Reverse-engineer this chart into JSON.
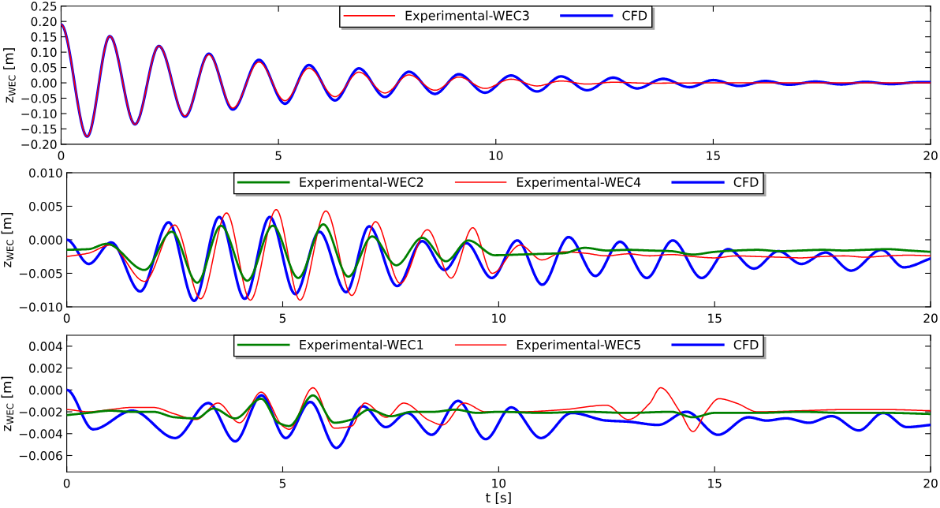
{
  "chart_data": [
    {
      "type": "line",
      "ylabel": "z$_{WEC}$ [m]",
      "xlim": [
        0,
        20
      ],
      "xticks": [
        0,
        5,
        10,
        15,
        20
      ],
      "ylim": [
        -0.2,
        0.25
      ],
      "yticks": [
        {
          "value": -0.2,
          "label": "−0.20"
        },
        {
          "value": -0.15,
          "label": "−0.15"
        },
        {
          "value": -0.1,
          "label": "−0.10"
        },
        {
          "value": -0.05,
          "label": "−0.05"
        },
        {
          "value": 0,
          "label": "0.00"
        },
        {
          "value": 0.05,
          "label": "0.05"
        },
        {
          "value": 0.1,
          "label": "0.10"
        },
        {
          "value": 0.15,
          "label": "0.15"
        },
        {
          "value": 0.2,
          "label": "0.20"
        },
        {
          "value": 0.25,
          "label": "0.25"
        }
      ],
      "grid": false,
      "legend": "top",
      "series": [
        {
          "name": "Experimental-WEC3",
          "color": "#ff0000",
          "x": [
            0,
            0.6,
            1.12,
            1.7,
            2.25,
            2.85,
            3.4,
            3.95,
            4.55,
            5.15,
            5.7,
            6.3,
            6.85,
            7.45,
            8.0,
            8.6,
            9.15,
            9.75,
            10.35,
            10.95,
            11.5,
            12.1,
            12.7,
            13.5,
            15,
            17,
            20
          ],
          "values": [
            0.19,
            -0.175,
            0.152,
            -0.135,
            0.12,
            -0.108,
            0.092,
            -0.082,
            0.068,
            -0.058,
            0.048,
            -0.045,
            0.035,
            -0.033,
            0.026,
            -0.024,
            0.019,
            -0.018,
            0.012,
            -0.01,
            0.006,
            -0.004,
            0.002,
            -0.001,
            0,
            0,
            0
          ]
        },
        {
          "name": "CFD",
          "color": "#0000ff",
          "x": [
            0,
            0.6,
            1.12,
            1.7,
            2.25,
            2.85,
            3.4,
            3.95,
            4.55,
            5.15,
            5.7,
            6.3,
            6.85,
            7.45,
            8.0,
            8.6,
            9.15,
            9.75,
            10.35,
            10.95,
            11.5,
            12.1,
            12.7,
            13.25,
            13.85,
            14.45,
            15.0,
            15.6,
            16.2,
            16.75,
            17.35,
            17.95,
            18.5,
            19.1,
            19.7,
            20
          ],
          "values": [
            0.19,
            -0.175,
            0.152,
            -0.135,
            0.12,
            -0.11,
            0.095,
            -0.087,
            0.075,
            -0.068,
            0.058,
            -0.057,
            0.047,
            -0.046,
            0.036,
            -0.036,
            0.028,
            -0.032,
            0.024,
            -0.028,
            0.021,
            -0.024,
            0.017,
            -0.018,
            0.013,
            -0.014,
            0.009,
            -0.01,
            0.006,
            -0.006,
            0.004,
            -0.005,
            0.003,
            -0.004,
            0.002,
            0.002
          ]
        }
      ]
    },
    {
      "type": "line",
      "ylabel": "z$_{WEC}$ [m]",
      "xlim": [
        0,
        20
      ],
      "xticks": [
        0,
        5,
        10,
        15,
        20
      ],
      "ylim": [
        -0.01,
        0.01
      ],
      "yticks": [
        {
          "value": -0.01,
          "label": "−0.010"
        },
        {
          "value": -0.005,
          "label": "−0.005"
        },
        {
          "value": 0,
          "label": "0.000"
        },
        {
          "value": 0.005,
          "label": "0.005"
        },
        {
          "value": 0.01,
          "label": "0.010"
        }
      ],
      "grid": false,
      "legend": "top",
      "series": [
        {
          "name": "Experimental-WEC2",
          "color": "#008000",
          "x": [
            0,
            0.5,
            0.93,
            1.8,
            2.43,
            3.02,
            3.57,
            4.18,
            4.77,
            5.36,
            5.94,
            6.52,
            7.07,
            7.63,
            8.23,
            8.78,
            9.3,
            9.91,
            10.5,
            11.0,
            11.5,
            12.0,
            12.5,
            13.0,
            13.5,
            14.0,
            14.5,
            15.0,
            15.5,
            16.0,
            16.5,
            17.0,
            17.5,
            18.0,
            18.5,
            19.0,
            19.5,
            20
          ],
          "values": [
            -0.0015,
            -0.0014,
            -0.0006,
            -0.0045,
            0.0012,
            -0.0064,
            0.0021,
            -0.0061,
            0.0021,
            -0.0057,
            0.0023,
            -0.0055,
            0.0005,
            -0.0038,
            0.0003,
            -0.0032,
            -0.0001,
            -0.0023,
            -0.0022,
            -0.0021,
            -0.002,
            -0.0012,
            -0.0016,
            -0.0015,
            -0.0016,
            -0.0017,
            -0.0022,
            -0.0018,
            -0.0016,
            -0.0015,
            -0.0017,
            -0.0016,
            -0.0015,
            -0.0016,
            -0.0015,
            -0.0014,
            -0.0016,
            -0.0018
          ]
        },
        {
          "name": "Experimental-WEC4",
          "color": "#ff0000",
          "x": [
            0,
            0.5,
            1.0,
            1.8,
            2.5,
            3.1,
            3.7,
            4.25,
            4.85,
            5.4,
            6.0,
            6.6,
            7.15,
            7.72,
            8.35,
            8.9,
            9.4,
            9.85,
            10.5,
            11.0,
            11.5,
            12.0,
            12.5,
            13.0,
            13.5,
            14.0,
            14.5,
            15.0,
            15.5,
            16.0,
            16.5,
            17.0,
            17.5,
            18.0,
            18.5,
            19.0,
            19.5,
            20
          ],
          "values": [
            -0.0025,
            -0.002,
            -0.0008,
            -0.0062,
            0.0022,
            -0.0088,
            0.004,
            -0.009,
            0.0045,
            -0.009,
            0.0043,
            -0.0083,
            0.0027,
            -0.0065,
            0.0015,
            -0.0057,
            0.0018,
            -0.005,
            -0.0008,
            -0.003,
            -0.0018,
            -0.002,
            -0.0024,
            -0.0021,
            -0.0024,
            -0.0022,
            -0.0025,
            -0.0027,
            -0.0024,
            -0.0025,
            -0.0026,
            -0.0027,
            -0.0025,
            -0.0024,
            -0.0026,
            -0.0024,
            -0.0023,
            -0.0024
          ]
        },
        {
          "name": "CFD",
          "color": "#0000ff",
          "x": [
            0,
            0.51,
            1.03,
            1.7,
            2.36,
            2.95,
            3.53,
            4.12,
            4.7,
            5.29,
            5.85,
            6.47,
            7.0,
            7.65,
            8.23,
            8.75,
            9.25,
            9.84,
            10.43,
            11.01,
            11.62,
            12.24,
            12.81,
            13.43,
            14.03,
            14.7,
            15.31,
            15.91,
            16.48,
            17.01,
            17.57,
            18.16,
            18.86,
            19.38,
            20
          ],
          "values": [
            0.0,
            -0.0036,
            -0.0004,
            -0.0077,
            0.0026,
            -0.0091,
            0.0034,
            -0.0088,
            0.0034,
            -0.0081,
            0.0012,
            -0.0078,
            0.002,
            -0.0069,
            -0.0002,
            -0.0045,
            -0.0005,
            -0.0057,
            -0.0001,
            -0.0067,
            0.0004,
            -0.0054,
            -0.0003,
            -0.0057,
            -0.0001,
            -0.0057,
            -0.0014,
            -0.0043,
            -0.0017,
            -0.0036,
            -0.0019,
            -0.0046,
            -0.0015,
            -0.0041,
            -0.0028
          ]
        }
      ]
    },
    {
      "type": "line",
      "ylabel": "z$_{WEC}$ [m]",
      "xlabel": "t [s]",
      "xlim": [
        0,
        20
      ],
      "xticks": [
        0,
        5,
        10,
        15,
        20
      ],
      "ylim": [
        -0.0075,
        0.005
      ],
      "yticks": [
        {
          "value": -0.006,
          "label": "−0.006"
        },
        {
          "value": -0.004,
          "label": "−0.004"
        },
        {
          "value": -0.002,
          "label": "−0.002"
        },
        {
          "value": 0,
          "label": "0.000"
        },
        {
          "value": 0.002,
          "label": "0.002"
        },
        {
          "value": 0.004,
          "label": "0.004"
        }
      ],
      "grid": false,
      "legend": "top",
      "series": [
        {
          "name": "Experimental-WEC1",
          "color": "#008000",
          "x": [
            0,
            0.5,
            1,
            1.5,
            2,
            2.5,
            3.0,
            3.4,
            3.9,
            4.5,
            4.9,
            5.15,
            5.7,
            6.2,
            6.6,
            7.0,
            7.5,
            8.0,
            8.5,
            9.0,
            9.5,
            10,
            11,
            12,
            13,
            14,
            14.5,
            15,
            16,
            17,
            18,
            19,
            20
          ],
          "values": [
            -0.0023,
            -0.0021,
            -0.0019,
            -0.002,
            -0.002,
            -0.0025,
            -0.0026,
            -0.0017,
            -0.0026,
            -0.0008,
            -0.003,
            -0.0033,
            -0.0005,
            -0.003,
            -0.0027,
            -0.0018,
            -0.0024,
            -0.002,
            -0.002,
            -0.0018,
            -0.0021,
            -0.002,
            -0.0021,
            -0.002,
            -0.0021,
            -0.002,
            -0.0025,
            -0.0021,
            -0.0021,
            -0.002,
            -0.0021,
            -0.0021,
            -0.0022
          ]
        },
        {
          "name": "Experimental-WEC5",
          "color": "#ff0000",
          "x": [
            0,
            0.5,
            1,
            1.5,
            2,
            2.5,
            3.0,
            3.5,
            4.0,
            4.5,
            5.0,
            5.15,
            5.7,
            6.2,
            6.6,
            6.9,
            7.4,
            7.8,
            8.4,
            8.7,
            9.2,
            9.7,
            10.5,
            11.5,
            12.5,
            13.0,
            13.5,
            13.75,
            14.2,
            14.5,
            14.8,
            15.1,
            15.5,
            16,
            17,
            18,
            19,
            20
          ],
          "values": [
            -0.0018,
            -0.002,
            -0.0018,
            -0.0016,
            -0.0016,
            -0.0022,
            -0.0027,
            -0.0012,
            -0.003,
            -0.0002,
            -0.0033,
            -0.0036,
            0.0002,
            -0.0035,
            -0.0033,
            -0.0012,
            -0.0025,
            -0.0012,
            -0.0028,
            -0.0032,
            -0.0012,
            -0.002,
            -0.002,
            -0.0018,
            -0.0014,
            -0.0027,
            -0.0012,
            0.0002,
            -0.002,
            -0.0038,
            -0.002,
            -0.0008,
            -0.0012,
            -0.002,
            -0.0019,
            -0.0018,
            -0.0018,
            -0.0019
          ]
        },
        {
          "name": "CFD",
          "color": "#0000ff",
          "x": [
            0,
            0.61,
            1.52,
            2.51,
            3.28,
            3.9,
            4.51,
            5.07,
            5.64,
            6.24,
            6.86,
            7.39,
            7.88,
            8.45,
            9.06,
            9.7,
            10.29,
            10.98,
            11.69,
            12.5,
            13.0,
            13.69,
            14.35,
            15.08,
            15.78,
            16.2,
            16.66,
            17.18,
            17.71,
            18.34,
            18.9,
            19.45,
            20
          ],
          "values": [
            0.0,
            -0.0036,
            -0.0019,
            -0.0044,
            -0.0012,
            -0.0047,
            -0.0005,
            -0.0044,
            -0.0011,
            -0.0053,
            -0.0015,
            -0.0034,
            -0.0021,
            -0.0041,
            -0.001,
            -0.0045,
            -0.0016,
            -0.0044,
            -0.0021,
            -0.0028,
            -0.0029,
            -0.0032,
            -0.002,
            -0.0041,
            -0.0025,
            -0.0028,
            -0.0026,
            -0.003,
            -0.0024,
            -0.0037,
            -0.0021,
            -0.0034,
            -0.0032
          ]
        }
      ]
    }
  ]
}
